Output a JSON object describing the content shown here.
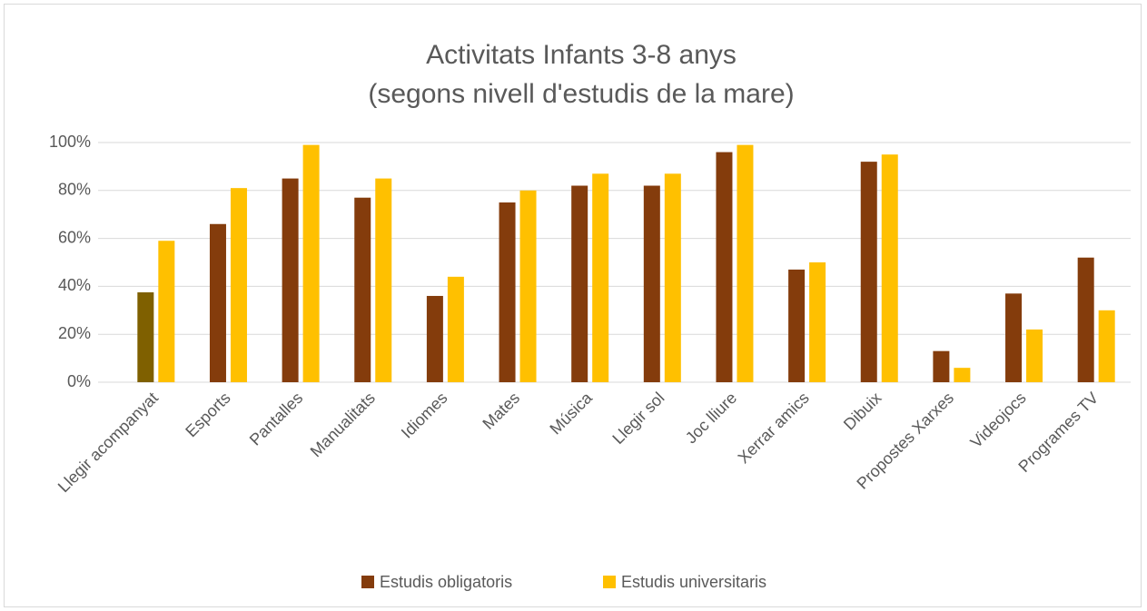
{
  "chart_data": {
    "type": "bar",
    "title": [
      "Activitats Infants 3-8 anys",
      "(segons nivell d'estudis de la mare)"
    ],
    "categories": [
      "Llegir acompanyat",
      "Esports",
      "Pantalles",
      "Manualitats",
      "Idiomes",
      "Mates",
      "Música",
      "Llegir sol",
      "Joc lliure",
      "Xerrar amics",
      "Dibuix",
      "Propostes Xarxes",
      "Videojocs",
      "Programes TV"
    ],
    "series": [
      {
        "name": "Estudis obligatoris",
        "color": "#843c0c",
        "point_colors": [
          "#7f6000",
          "#843c0c",
          "#843c0c",
          "#843c0c",
          "#843c0c",
          "#843c0c",
          "#843c0c",
          "#843c0c",
          "#843c0c",
          "#843c0c",
          "#843c0c",
          "#843c0c",
          "#843c0c",
          "#843c0c"
        ],
        "values": [
          37.5,
          66,
          85,
          77,
          36,
          75,
          82,
          82,
          96,
          47,
          92,
          13,
          37,
          52
        ]
      },
      {
        "name": "Estudis universitaris",
        "color": "#ffc000",
        "values": [
          59,
          81,
          99,
          85,
          44,
          80,
          87,
          87,
          99,
          50,
          95,
          6,
          22,
          30
        ]
      }
    ],
    "ylim": [
      0,
      100
    ],
    "yticks": [
      {
        "value": 0,
        "label": "0%"
      },
      {
        "value": 20,
        "label": "20%"
      },
      {
        "value": 40,
        "label": "40%"
      },
      {
        "value": 60,
        "label": "60%"
      },
      {
        "value": 80,
        "label": "80%"
      },
      {
        "value": 100,
        "label": "100%"
      }
    ],
    "grid": true,
    "legend": "bottom"
  }
}
